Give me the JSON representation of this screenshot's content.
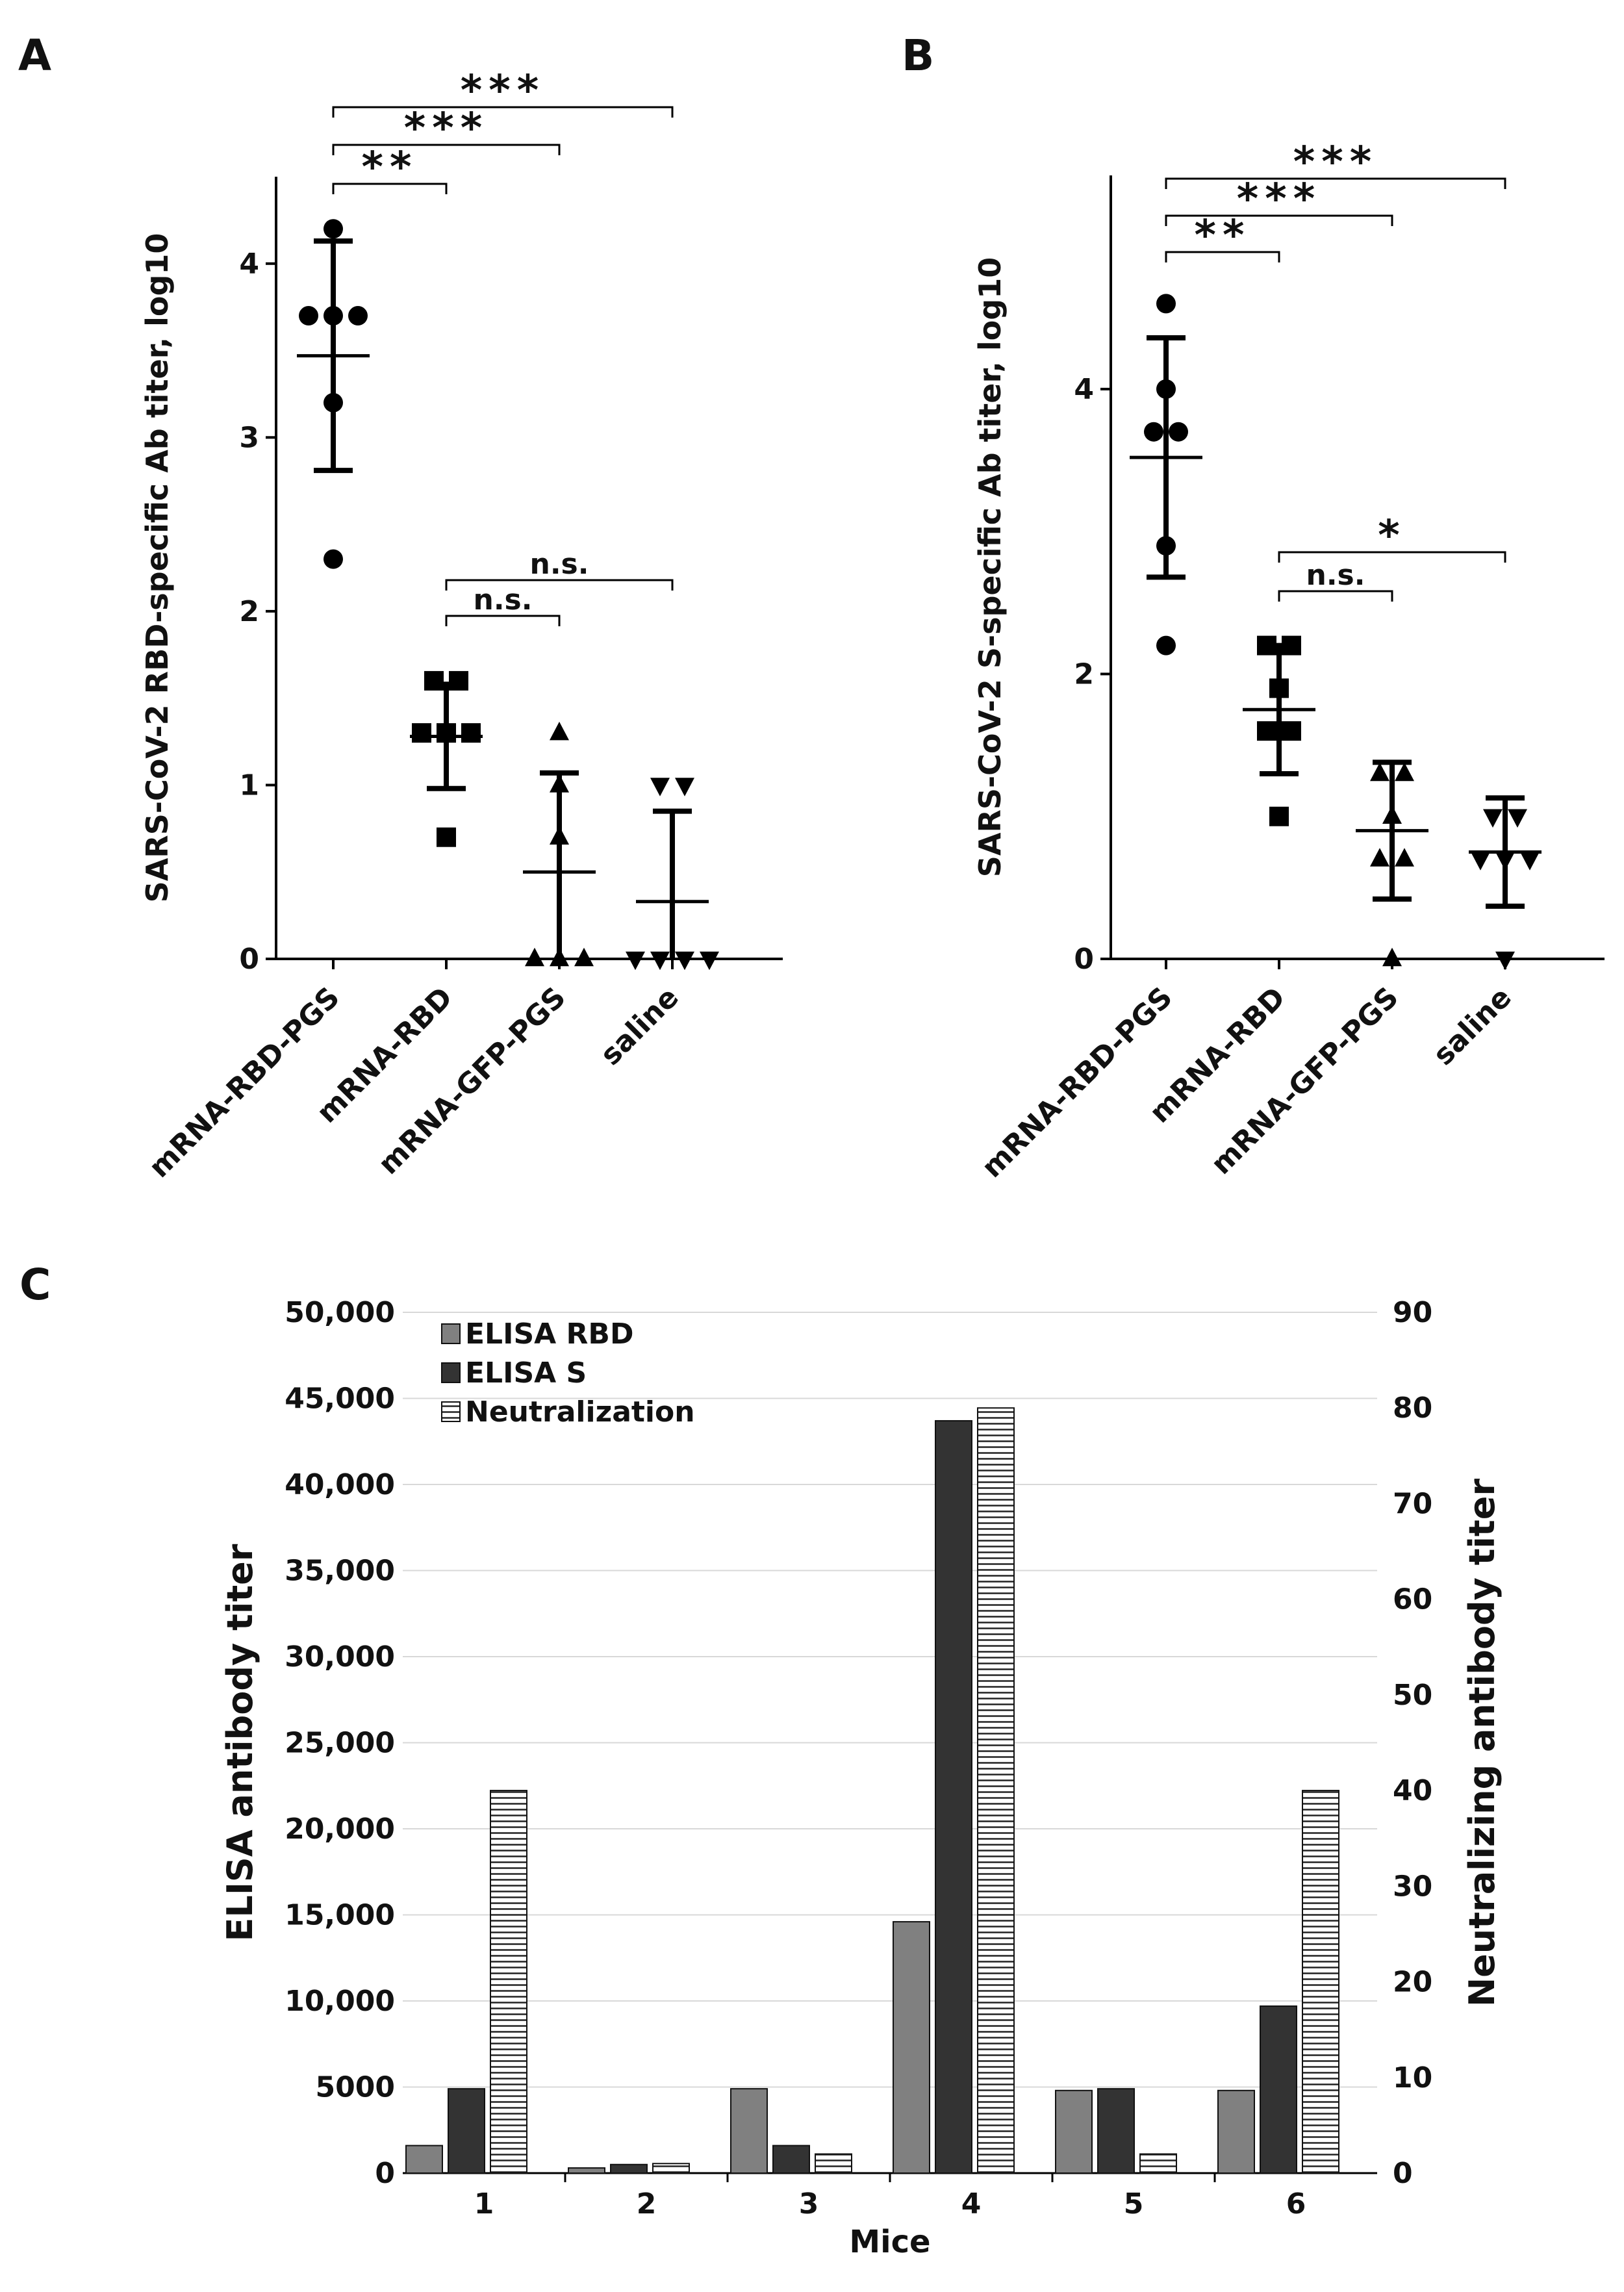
{
  "chart_data": [
    {
      "panel": "A",
      "type": "scatter",
      "ylabel": "SARS-CoV-2 RBD-specific Ab titer, log10",
      "ylim": [
        0,
        4.5
      ],
      "yticks": [
        0,
        1,
        2,
        3,
        4
      ],
      "categories": [
        "mRNA-RBD-PGS",
        "mRNA-RBD",
        "mRNA-GFP-PGS",
        "saline"
      ],
      "markers": [
        "circle",
        "square",
        "triangle-up",
        "triangle-down"
      ],
      "groups": [
        {
          "name": "mRNA-RBD-PGS",
          "points": [
            4.2,
            3.7,
            3.7,
            3.7,
            3.2,
            2.3
          ],
          "mean": 3.47,
          "sd": 0.66
        },
        {
          "name": "mRNA-RBD",
          "points": [
            1.6,
            1.6,
            1.3,
            1.3,
            1.3,
            0.7
          ],
          "mean": 1.28,
          "sd": 0.3
        },
        {
          "name": "mRNA-GFP-PGS",
          "points": [
            1.3,
            1.0,
            0.7,
            0.0,
            0.0,
            0.0
          ],
          "mean": 0.5,
          "sd": 0.57
        },
        {
          "name": "saline",
          "points": [
            1.0,
            1.0,
            0.0,
            0.0,
            0.0,
            0.0
          ],
          "mean": 0.33,
          "sd": 0.52
        }
      ],
      "comparisons": [
        {
          "from": 0,
          "to": 1,
          "label": "**"
        },
        {
          "from": 0,
          "to": 2,
          "label": "***"
        },
        {
          "from": 0,
          "to": 3,
          "label": "***"
        },
        {
          "from": 1,
          "to": 2,
          "label": "n.s."
        },
        {
          "from": 1,
          "to": 3,
          "label": "n.s."
        }
      ]
    },
    {
      "panel": "B",
      "type": "scatter",
      "ylabel": "SARS-CoV-2 S-specific Ab titer, log10",
      "ylim": [
        0,
        5.5
      ],
      "yticks": [
        0,
        2,
        4
      ],
      "categories": [
        "mRNA-RBD-PGS",
        "mRNA-RBD",
        "mRNA-GFP-PGS",
        "saline"
      ],
      "markers": [
        "circle",
        "square",
        "triangle-up",
        "triangle-down"
      ],
      "groups": [
        {
          "name": "mRNA-RBD-PGS",
          "points": [
            4.6,
            4.0,
            3.7,
            3.7,
            2.9,
            2.2
          ],
          "mean": 3.52,
          "sd": 0.84
        },
        {
          "name": "mRNA-RBD",
          "points": [
            2.2,
            2.2,
            1.9,
            1.6,
            1.6,
            1.0
          ],
          "mean": 1.75,
          "sd": 0.45
        },
        {
          "name": "mRNA-GFP-PGS",
          "points": [
            1.3,
            1.3,
            1.0,
            0.7,
            0.7,
            0.0
          ],
          "mean": 0.9,
          "sd": 0.48
        },
        {
          "name": "saline",
          "points": [
            1.0,
            1.0,
            0.7,
            0.7,
            0.7,
            0.0
          ],
          "mean": 0.75,
          "sd": 0.38
        }
      ],
      "comparisons": [
        {
          "from": 0,
          "to": 1,
          "label": "**"
        },
        {
          "from": 0,
          "to": 2,
          "label": "***"
        },
        {
          "from": 0,
          "to": 3,
          "label": "***"
        },
        {
          "from": 1,
          "to": 2,
          "label": "n.s."
        },
        {
          "from": 1,
          "to": 3,
          "label": "*"
        }
      ]
    },
    {
      "panel": "C",
      "type": "bar",
      "xlabel": "Mice",
      "ylabel": "ELISA antibody titer",
      "y2label": "Neutralizing antibody titer",
      "categories": [
        "1",
        "2",
        "3",
        "4",
        "5",
        "6"
      ],
      "ylim": [
        0,
        50000
      ],
      "y2lim": [
        0,
        90
      ],
      "yticks": [
        "0",
        "5000",
        "10,000",
        "15,000",
        "20,000",
        "25,000",
        "30,000",
        "35,000",
        "40,000",
        "45,000",
        "50,000"
      ],
      "y2ticks": [
        "0",
        "10",
        "20",
        "30",
        "40",
        "50",
        "60",
        "70",
        "80",
        "90"
      ],
      "series": [
        {
          "name": "ELISA RBD",
          "axis": "left",
          "color": "#808080",
          "values": [
            1600,
            300,
            4900,
            14600,
            4800,
            4800
          ]
        },
        {
          "name": "ELISA S",
          "axis": "left",
          "color": "#333333",
          "values": [
            4900,
            500,
            1600,
            43700,
            4900,
            9700
          ]
        },
        {
          "name": "Neutralization",
          "axis": "right",
          "color": "hatched",
          "values": [
            40,
            1,
            2,
            80,
            2,
            40
          ]
        }
      ],
      "grid": true,
      "legend": "top-left"
    }
  ]
}
